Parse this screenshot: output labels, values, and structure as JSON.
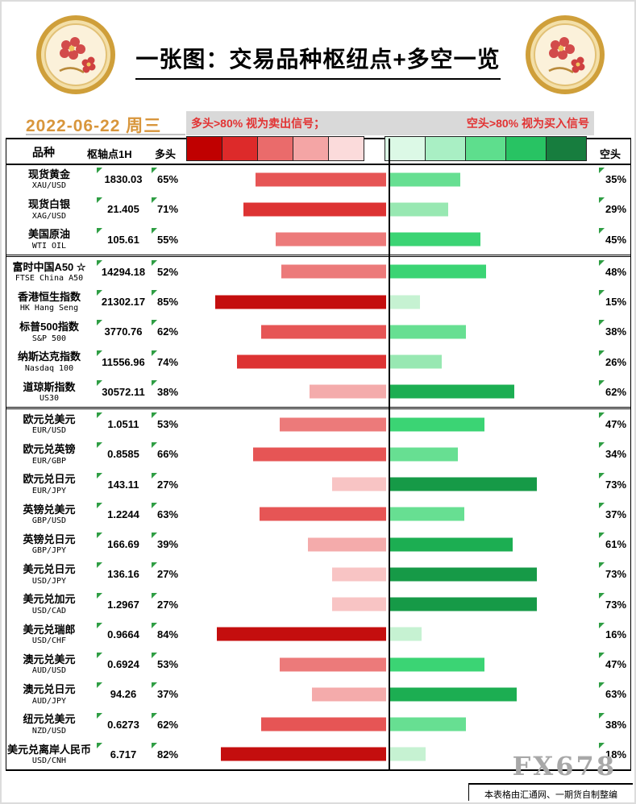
{
  "header": {
    "title": "一张图：交易品种枢纽点+多空一览",
    "date": "2022-06-22 周三"
  },
  "legend": {
    "long_note": "多头>80% 视为卖出信号；",
    "short_note": "空头>80% 视为买入信号",
    "scale_reds": [
      "#c00000",
      "#dd2a2a",
      "#ea6b6b",
      "#f4a5a5",
      "#fbdbdb"
    ],
    "scale_greens": [
      "#dcf9e6",
      "#a9efc4",
      "#5ede8d",
      "#28c363",
      "#177d3e"
    ]
  },
  "columns": {
    "instrument": "品种",
    "pivot": "枢轴点1H",
    "long": "多头",
    "short": "空头"
  },
  "footer": {
    "watermark": "FX678",
    "credit": "本表格由汇通网、一期货自制整编"
  },
  "colors": {
    "flag": "#2f9e44",
    "date": "#d8963c",
    "legend_text": "#e23333",
    "long_gradient": [
      "#fdecec",
      "#fbdcdc",
      "#f8c4c4",
      "#f4abab",
      "#f09292",
      "#ec7a7a",
      "#e65555",
      "#dd3333",
      "#c40e0e",
      "#a80000"
    ],
    "short_gradient": [
      "#eafaef",
      "#c6f2d2",
      "#98e8b2",
      "#67df92",
      "#3bd474",
      "#22c45f",
      "#1cae52",
      "#169a47",
      "#108538",
      "#0b702e"
    ]
  },
  "chart_data": {
    "type": "bar",
    "subtype": "diverging",
    "title": "一张图：交易品种枢纽点+多空一览",
    "date": "2022-06-22 周三",
    "unit": "percent",
    "note": "Red bars = 多头(long)% extending left of center; green bars = 空头(short)% extending right of center; long%+short%=100; darker shade = higher percentage",
    "axis_each_side": [
      0,
      100
    ],
    "rows": [
      {
        "name": "现货黄金",
        "code": "XAU/USD",
        "pivot": "1830.03",
        "long_pct": 65,
        "short_pct": 35,
        "separator_after": false
      },
      {
        "name": "现货白银",
        "code": "XAG/USD",
        "pivot": "21.405",
        "long_pct": 71,
        "short_pct": 29,
        "separator_after": false
      },
      {
        "name": "美国原油",
        "code": "WTI OIL",
        "pivot": "105.61",
        "long_pct": 55,
        "short_pct": 45,
        "separator_after": true
      },
      {
        "name": "富时中国A50 ☆",
        "code": "FTSE China A50",
        "pivot": "14294.18",
        "long_pct": 52,
        "short_pct": 48,
        "separator_after": false
      },
      {
        "name": "香港恒生指数",
        "code": "HK Hang Seng",
        "pivot": "21302.17",
        "long_pct": 85,
        "short_pct": 15,
        "separator_after": false
      },
      {
        "name": "标普500指数",
        "code": "S&P 500",
        "pivot": "3770.76",
        "long_pct": 62,
        "short_pct": 38,
        "separator_after": false
      },
      {
        "name": "纳斯达克指数",
        "code": "Nasdaq 100",
        "pivot": "11556.96",
        "long_pct": 74,
        "short_pct": 26,
        "separator_after": false
      },
      {
        "name": "道琼斯指数",
        "code": "US30",
        "pivot": "30572.11",
        "long_pct": 38,
        "short_pct": 62,
        "separator_after": true
      },
      {
        "name": "欧元兑美元",
        "code": "EUR/USD",
        "pivot": "1.0511",
        "long_pct": 53,
        "short_pct": 47,
        "separator_after": false
      },
      {
        "name": "欧元兑英镑",
        "code": "EUR/GBP",
        "pivot": "0.8585",
        "long_pct": 66,
        "short_pct": 34,
        "separator_after": false
      },
      {
        "name": "欧元兑日元",
        "code": "EUR/JPY",
        "pivot": "143.11",
        "long_pct": 27,
        "short_pct": 73,
        "separator_after": false
      },
      {
        "name": "英镑兑美元",
        "code": "GBP/USD",
        "pivot": "1.2244",
        "long_pct": 63,
        "short_pct": 37,
        "separator_after": false
      },
      {
        "name": "英镑兑日元",
        "code": "GBP/JPY",
        "pivot": "166.69",
        "long_pct": 39,
        "short_pct": 61,
        "separator_after": false
      },
      {
        "name": "美元兑日元",
        "code": "USD/JPY",
        "pivot": "136.16",
        "long_pct": 27,
        "short_pct": 73,
        "separator_after": false
      },
      {
        "name": "美元兑加元",
        "code": "USD/CAD",
        "pivot": "1.2967",
        "long_pct": 27,
        "short_pct": 73,
        "separator_after": false
      },
      {
        "name": "美元兑瑞郎",
        "code": "USD/CHF",
        "pivot": "0.9664",
        "long_pct": 84,
        "short_pct": 16,
        "separator_after": false
      },
      {
        "name": "澳元兑美元",
        "code": "AUD/USD",
        "pivot": "0.6924",
        "long_pct": 53,
        "short_pct": 47,
        "separator_after": false
      },
      {
        "name": "澳元兑日元",
        "code": "AUD/JPY",
        "pivot": "94.26",
        "long_pct": 37,
        "short_pct": 63,
        "separator_after": false
      },
      {
        "name": "纽元兑美元",
        "code": "NZD/USD",
        "pivot": "0.6273",
        "long_pct": 62,
        "short_pct": 38,
        "separator_after": false
      },
      {
        "name": "美元兑离岸人民币",
        "code": "USD/CNH",
        "pivot": "6.717",
        "long_pct": 82,
        "short_pct": 18,
        "separator_after": false
      }
    ]
  }
}
